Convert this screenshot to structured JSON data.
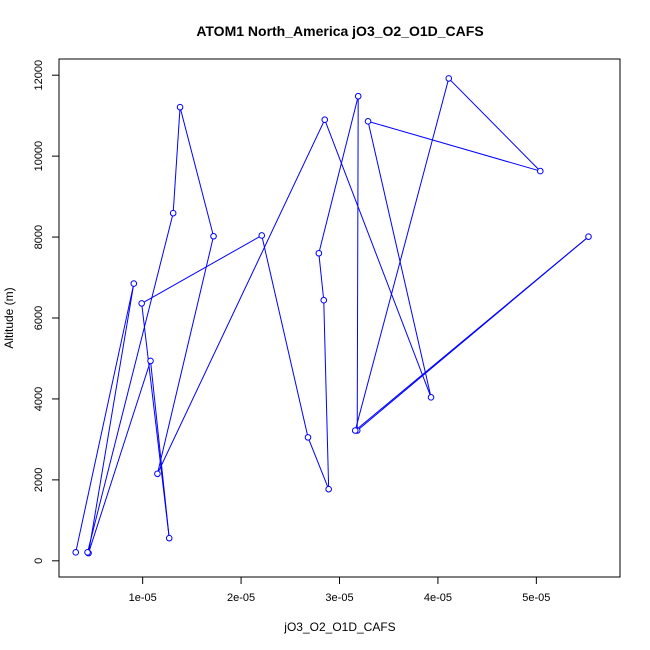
{
  "chart_data": {
    "type": "line",
    "title": "ATOM1 North_America jO3_O2_O1D_CAFS",
    "xlabel": "jO3_O2_O1D_CAFS",
    "ylabel": "Altitude (m)",
    "xlim": [
      1.5e-06,
      5.85e-05
    ],
    "ylim": [
      -400,
      12400
    ],
    "x_ticks": [
      1e-05,
      2e-05,
      3e-05,
      4e-05,
      5e-05
    ],
    "x_tick_labels": [
      "1e-05",
      "2e-05",
      "3e-05",
      "4e-05",
      "5e-05"
    ],
    "y_ticks": [
      0,
      2000,
      4000,
      6000,
      8000,
      10000,
      12000
    ],
    "y_tick_labels": [
      "0",
      "2000",
      "4000",
      "6000",
      "8000",
      "10000",
      "12000"
    ],
    "grid": false,
    "color": "#0000ff",
    "series": [
      {
        "x": [
          3.2e-06,
          9.1e-06,
          4.5e-06,
          1.08e-05,
          1.27e-05,
          9.9e-06,
          2.21e-05,
          2.68e-05,
          2.89e-05,
          2.84e-05,
          2.79e-05,
          3.19e-05,
          3.18e-05,
          5.53e-05,
          3.16e-05,
          4.11e-05,
          5.04e-05,
          3.29e-05,
          3.93e-05,
          2.85e-05,
          1.15e-05,
          1.72e-05,
          1.38e-05,
          1.31e-05,
          4.4e-06
        ],
        "y": [
          210,
          6850,
          190,
          4940,
          560,
          6360,
          8040,
          3050,
          1770,
          6440,
          7600,
          11480,
          3220,
          8010,
          3220,
          11920,
          9630,
          10860,
          4040,
          10900,
          2150,
          8020,
          11210,
          8590,
          210
        ]
      }
    ]
  }
}
